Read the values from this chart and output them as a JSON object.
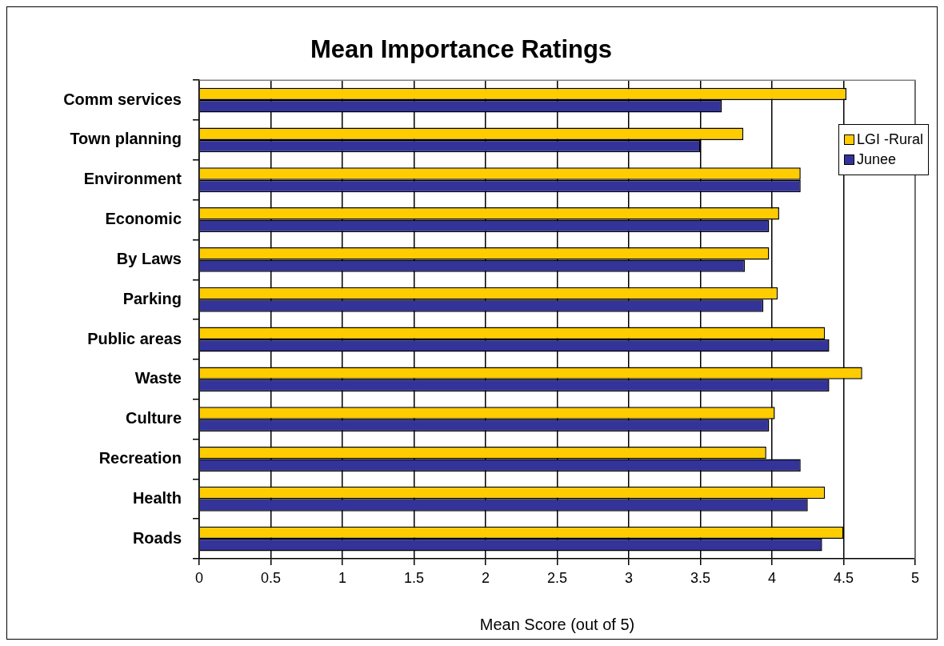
{
  "chart_data": {
    "type": "bar",
    "orientation": "horizontal",
    "title": "Mean Importance Ratings",
    "xlabel": "Mean Score (out of 5)",
    "categories": [
      "Comm services",
      "Town planning",
      "Environment",
      "Economic",
      "By Laws",
      "Parking",
      "Public areas",
      "Waste",
      "Culture",
      "Recreation",
      "Health",
      "Roads"
    ],
    "series": [
      {
        "name": "LGI -Rural",
        "color": "#ffcc00",
        "values": [
          4.52,
          3.8,
          4.2,
          4.05,
          3.98,
          4.04,
          4.37,
          4.63,
          4.02,
          3.96,
          4.37,
          4.5
        ]
      },
      {
        "name": "Junee",
        "color": "#333399",
        "values": [
          3.65,
          3.5,
          4.2,
          3.98,
          3.81,
          3.94,
          4.4,
          4.4,
          3.98,
          4.2,
          4.25,
          4.35
        ]
      }
    ],
    "xlim": [
      0,
      5
    ],
    "xticks": [
      0,
      0.5,
      1,
      1.5,
      2,
      2.5,
      3,
      3.5,
      4,
      4.5,
      5
    ],
    "grid": "x",
    "legend": "top right"
  }
}
